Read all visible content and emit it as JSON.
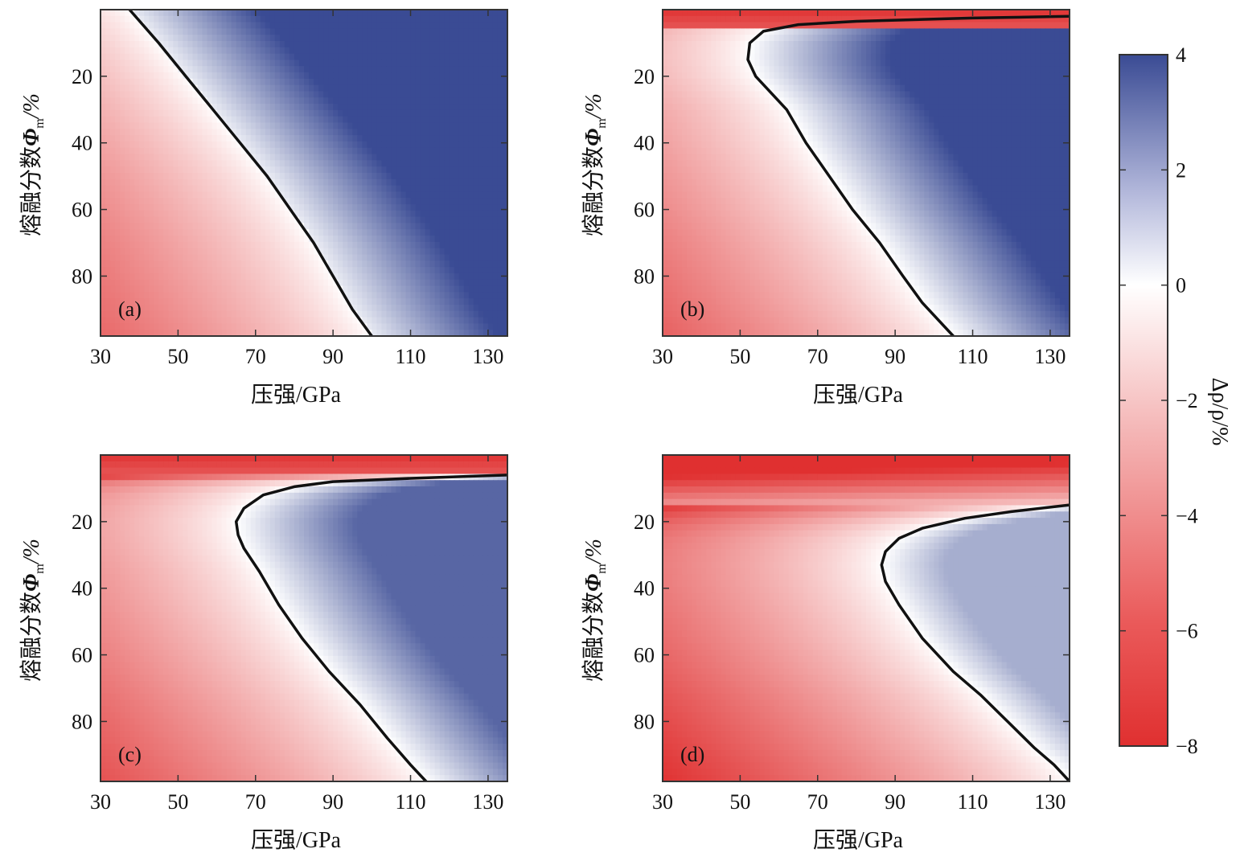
{
  "chart_data": {
    "type": "heatmap",
    "shared": {
      "xlabel": "压强/GPa",
      "ylabel_main": "熔融分数",
      "ylabel_symbol": "Φ",
      "ylabel_sub": "m",
      "ylabel_unit": "/%",
      "xlim": [
        30,
        135
      ],
      "ylim": [
        0,
        98
      ],
      "y_inverted": true,
      "x_ticks": [
        30,
        50,
        70,
        90,
        110,
        130
      ],
      "y_ticks": [
        20,
        40,
        60,
        80
      ]
    },
    "colorbar": {
      "label": "Δρ/ρ/%",
      "range": [
        -8,
        4
      ],
      "ticks": [
        4,
        2,
        0,
        -2,
        -4,
        -6,
        -8
      ],
      "tick_labels": [
        "4",
        "2",
        "0",
        "−2",
        "−4",
        "−6",
        "−8"
      ],
      "colors": {
        "negative": "#e03030",
        "zero": "#ffffff",
        "positive": "#3a4b94"
      }
    },
    "panels": [
      {
        "id": "a",
        "label": "(a)",
        "zero_contour": [
          [
            37.5,
            0
          ],
          [
            45,
            10
          ],
          [
            52,
            20
          ],
          [
            59,
            30
          ],
          [
            66,
            40
          ],
          [
            73,
            50
          ],
          [
            79,
            60
          ],
          [
            85,
            70
          ],
          [
            90,
            80
          ],
          [
            95,
            90
          ],
          [
            100,
            98
          ]
        ]
      },
      {
        "id": "b",
        "label": "(b)",
        "zero_contour": [
          [
            135,
            2
          ],
          [
            110,
            2.5
          ],
          [
            80,
            3.5
          ],
          [
            65,
            4.5
          ],
          [
            56,
            6.5
          ],
          [
            52.5,
            10
          ],
          [
            52,
            15
          ],
          [
            54,
            20
          ],
          [
            58,
            25
          ],
          [
            62,
            30
          ],
          [
            67,
            40
          ],
          [
            73,
            50
          ],
          [
            79,
            60
          ],
          [
            86,
            70
          ],
          [
            92,
            80
          ],
          [
            97,
            88
          ],
          [
            105,
            98
          ]
        ]
      },
      {
        "id": "c",
        "label": "(c)",
        "zero_contour": [
          [
            135,
            6
          ],
          [
            110,
            7
          ],
          [
            90,
            8
          ],
          [
            80,
            9.5
          ],
          [
            72,
            12
          ],
          [
            67,
            16
          ],
          [
            65,
            20
          ],
          [
            65.5,
            24
          ],
          [
            67,
            28
          ],
          [
            71,
            35
          ],
          [
            76,
            45
          ],
          [
            82,
            55
          ],
          [
            89,
            65
          ],
          [
            97,
            75
          ],
          [
            104,
            85
          ],
          [
            110,
            93
          ],
          [
            114,
            98
          ]
        ]
      },
      {
        "id": "d",
        "label": "(d)",
        "zero_contour": [
          [
            135,
            15
          ],
          [
            120,
            17
          ],
          [
            108,
            19
          ],
          [
            97,
            22
          ],
          [
            91,
            25
          ],
          [
            87.5,
            29
          ],
          [
            86.5,
            33
          ],
          [
            87.5,
            38
          ],
          [
            91,
            45
          ],
          [
            97,
            55
          ],
          [
            105,
            65
          ],
          [
            112,
            72
          ],
          [
            119,
            80
          ],
          [
            126,
            88
          ],
          [
            131,
            93
          ],
          [
            135,
            98
          ]
        ]
      }
    ]
  }
}
